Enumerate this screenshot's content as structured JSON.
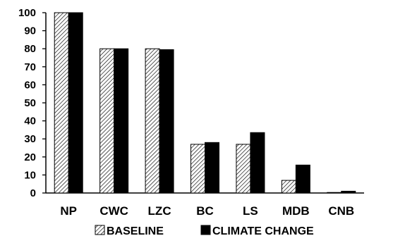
{
  "chart_data": {
    "type": "bar",
    "title": "",
    "xlabel": "",
    "ylabel": "",
    "ylim": [
      0,
      100
    ],
    "y_ticks": [
      "0",
      "10",
      "20",
      "30",
      "40",
      "50",
      "60",
      "70",
      "80",
      "90",
      "100"
    ],
    "categories": [
      "NP",
      "CWC",
      "LZC",
      "BC",
      "LS",
      "MDB",
      "CNB"
    ],
    "series": [
      {
        "name": "BASELINE",
        "pattern": "diagonal-hatch",
        "color": "#000000",
        "values": [
          100,
          80,
          80,
          27,
          27,
          7,
          0.3
        ]
      },
      {
        "name": "CLIMATE CHANGE",
        "pattern": "solid",
        "color": "#000000",
        "values": [
          100,
          80,
          79.5,
          28,
          33.5,
          15.5,
          1
        ]
      }
    ],
    "grid": false,
    "legend_position": "bottom"
  }
}
